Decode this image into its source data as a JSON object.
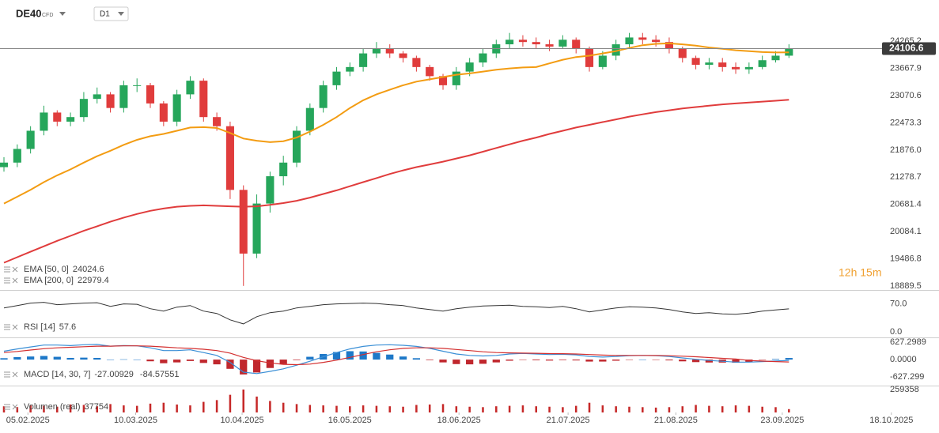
{
  "toolbar": {
    "symbol": "DE40",
    "market": "CFD",
    "timeframe": "D1"
  },
  "countdown": "12h 15m",
  "x_axis": {
    "xlim": [
      0,
      65.7
    ],
    "xticks": [
      {
        "value": 1.8,
        "label": "05.02.2025"
      },
      {
        "value": 9.9,
        "label": "10.03.2025"
      },
      {
        "value": 17.9,
        "label": "10.04.2025"
      },
      {
        "value": 26.0,
        "label": "16.05.2025"
      },
      {
        "value": 34.2,
        "label": "18.06.2025"
      },
      {
        "value": 42.4,
        "label": "21.07.2025"
      },
      {
        "value": 50.5,
        "label": "21.08.2025"
      },
      {
        "value": 58.5,
        "label": "23.09.2025"
      },
      {
        "value": 66.7,
        "label": "18.10.2025"
      }
    ]
  },
  "chart_data": [
    {
      "type": "candlestick",
      "colors": {
        "up": "#26a65b",
        "down": "#e03c3c"
      },
      "ylim": [
        18800,
        25000
      ],
      "yticks": [
        24265.2,
        23667.9,
        23070.6,
        22473.3,
        {
          "value": 21876,
          "label": "21876.0"
        },
        21278.7,
        20681.4,
        20084.1,
        19486.8,
        18889.5
      ],
      "open": [
        21500,
        21600,
        21900,
        22300,
        22700,
        22500,
        22600,
        23000,
        23100,
        22800,
        23300,
        23300,
        22900,
        22500,
        23100,
        23400,
        22600,
        22400,
        21000,
        19600,
        20700,
        21300,
        21600,
        22300,
        22800,
        23300,
        23600,
        23700,
        24000,
        24100,
        24000,
        23900,
        23700,
        23500,
        23300,
        23600,
        23800,
        24000,
        24200,
        24300,
        24250,
        24200,
        24150,
        24300,
        24100,
        23700,
        23950,
        24200,
        24350,
        24300,
        24250,
        24100,
        23900,
        23750,
        23800,
        23700,
        23650,
        23700,
        23850,
        23950
      ],
      "high": [
        21720,
        22000,
        22400,
        22850,
        22750,
        22700,
        23150,
        23250,
        23150,
        23400,
        23450,
        23350,
        22950,
        23200,
        23500,
        23450,
        22700,
        22500,
        21100,
        20900,
        21400,
        21750,
        22400,
        22900,
        23400,
        23700,
        23800,
        24100,
        24250,
        24200,
        24050,
        23950,
        23750,
        23550,
        23700,
        23900,
        24100,
        24300,
        24450,
        24400,
        24350,
        24300,
        24400,
        24350,
        24150,
        24050,
        24300,
        24450,
        24450,
        24400,
        24350,
        24150,
        23950,
        23900,
        23900,
        23800,
        23800,
        23950,
        24050,
        24200
      ],
      "low": [
        21400,
        21500,
        21800,
        22200,
        22400,
        22400,
        22500,
        22900,
        22700,
        22700,
        23150,
        22800,
        22400,
        22400,
        23000,
        22500,
        22300,
        20800,
        18890,
        19500,
        20500,
        21100,
        21500,
        22200,
        22700,
        23200,
        23500,
        23600,
        23900,
        23900,
        23800,
        23600,
        23400,
        23200,
        23200,
        23500,
        23700,
        23900,
        24100,
        24150,
        24100,
        24050,
        24100,
        24000,
        23600,
        23650,
        23850,
        24100,
        24200,
        24150,
        24000,
        23800,
        23650,
        23650,
        23600,
        23550,
        23550,
        23650,
        23800,
        23900
      ],
      "close": [
        21600,
        21900,
        22300,
        22700,
        22500,
        22600,
        23000,
        23100,
        22800,
        23300,
        23300,
        22900,
        22500,
        23100,
        23400,
        22600,
        22400,
        21000,
        19600,
        20700,
        21300,
        21600,
        22300,
        22800,
        23300,
        23600,
        23700,
        24000,
        24100,
        24000,
        23900,
        23700,
        23500,
        23300,
        23600,
        23800,
        24000,
        24200,
        24300,
        24250,
        24200,
        24150,
        24300,
        24100,
        23700,
        23950,
        24200,
        24350,
        24300,
        24250,
        24100,
        23900,
        23750,
        23800,
        23700,
        23650,
        23700,
        23850,
        23950,
        24106.6
      ],
      "overlays": [
        {
          "name": "EMA [50, 0]",
          "color": "#f39c12",
          "values": [
            20700,
            20850,
            21000,
            21170,
            21320,
            21450,
            21600,
            21740,
            21860,
            21990,
            22100,
            22180,
            22230,
            22300,
            22370,
            22380,
            22360,
            22250,
            22130,
            22080,
            22050,
            22070,
            22150,
            22280,
            22430,
            22600,
            22800,
            22970,
            23100,
            23200,
            23300,
            23380,
            23430,
            23480,
            23530,
            23560,
            23600,
            23640,
            23670,
            23690,
            23700,
            23780,
            23860,
            23920,
            23950,
            24000,
            24050,
            24120,
            24180,
            24210,
            24220,
            24200,
            24170,
            24130,
            24100,
            24070,
            24050,
            24030,
            24020,
            24024.6
          ]
        },
        {
          "name": "EMA [200, 0]",
          "color": "#e03c3c",
          "values": [
            19400,
            19520,
            19640,
            19760,
            19880,
            19990,
            20100,
            20200,
            20300,
            20390,
            20470,
            20540,
            20590,
            20630,
            20650,
            20660,
            20650,
            20640,
            20630,
            20640,
            20670,
            20710,
            20760,
            20830,
            20910,
            20990,
            21080,
            21170,
            21260,
            21350,
            21430,
            21500,
            21560,
            21620,
            21690,
            21760,
            21840,
            21920,
            22000,
            22080,
            22150,
            22230,
            22300,
            22370,
            22430,
            22490,
            22550,
            22610,
            22660,
            22710,
            22750,
            22790,
            22820,
            22850,
            22880,
            22900,
            22920,
            22940,
            22960,
            22979.4
          ]
        }
      ]
    },
    {
      "type": "line",
      "name": "RSI [14]",
      "color": "#333333",
      "ylim": [
        -12,
        101
      ],
      "yticks": [
        {
          "value": 70,
          "label": "70.0"
        },
        {
          "value": 0,
          "label": "0.0"
        }
      ],
      "values": [
        60,
        66,
        72,
        74,
        68,
        70,
        72,
        73,
        64,
        70,
        69,
        58,
        52,
        62,
        66,
        52,
        46,
        30,
        20,
        38,
        48,
        52,
        60,
        64,
        68,
        70,
        71,
        72,
        71,
        68,
        66,
        60,
        56,
        52,
        58,
        62,
        65,
        66,
        67,
        64,
        63,
        61,
        64,
        58,
        50,
        55,
        60,
        63,
        62,
        60,
        56,
        50,
        46,
        48,
        45,
        44,
        47,
        52,
        55,
        57.6
      ]
    },
    {
      "type": "macd",
      "name": "MACD [14, 30, 7]",
      "ylim": [
        -900,
        736
      ],
      "yticks": [
        627.2989,
        {
          "value": 0,
          "label": "0.0000"
        },
        -627.299
      ],
      "macd": {
        "color": "#3a8fd6",
        "values": [
          300,
          380,
          450,
          520,
          520,
          500,
          530,
          540,
          480,
          500,
          490,
          420,
          320,
          320,
          350,
          250,
          150,
          -100,
          -450,
          -500,
          -420,
          -330,
          -200,
          -60,
          100,
          250,
          380,
          470,
          520,
          530,
          510,
          470,
          400,
          300,
          200,
          150,
          130,
          150,
          200,
          220,
          200,
          180,
          190,
          170,
          110,
          90,
          110,
          140,
          150,
          140,
          110,
          60,
          10,
          -30,
          -60,
          -90,
          -90,
          -70,
          -50,
          -27.00929
        ]
      },
      "signal": {
        "color": "#d32f2f",
        "values": [
          250,
          290,
          340,
          390,
          420,
          440,
          460,
          480,
          480,
          490,
          490,
          480,
          450,
          420,
          400,
          370,
          320,
          230,
          80,
          -40,
          -120,
          -170,
          -180,
          -160,
          -100,
          -20,
          80,
          180,
          280,
          350,
          400,
          420,
          420,
          400,
          360,
          320,
          280,
          250,
          240,
          230,
          225,
          215,
          210,
          200,
          180,
          160,
          150,
          148,
          148,
          146,
          138,
          122,
          100,
          74,
          46,
          20,
          -30,
          -55,
          -72,
          -84.57551
        ]
      },
      "histogram": {
        "up_color": "#1e78c8",
        "down_color": "#c0272d",
        "values": [
          50,
          90,
          110,
          130,
          100,
          60,
          70,
          60,
          0,
          10,
          0,
          -60,
          -130,
          -100,
          -50,
          -120,
          -170,
          -330,
          -530,
          -460,
          -300,
          -160,
          -20,
          100,
          200,
          270,
          300,
          290,
          240,
          180,
          110,
          50,
          -20,
          -100,
          -160,
          -170,
          -150,
          -100,
          -40,
          -10,
          -25,
          -35,
          -20,
          -30,
          -70,
          -70,
          -40,
          -8,
          2,
          -6,
          -28,
          -62,
          -90,
          -104,
          -106,
          -110,
          -85,
          -15,
          22,
          57.56622
        ]
      }
    },
    {
      "type": "bar",
      "name": "Volumen (real)",
      "color": "#c62828",
      "ylim": [
        0,
        259358
      ],
      "yticks": [
        259358
      ],
      "values": [
        70000,
        60000,
        80000,
        75000,
        65000,
        90000,
        85000,
        70000,
        95000,
        80000,
        75000,
        100000,
        110000,
        90000,
        80000,
        120000,
        140000,
        200000,
        259358,
        180000,
        130000,
        110000,
        95000,
        85000,
        80000,
        75000,
        70000,
        80000,
        75000,
        70000,
        65000,
        85000,
        90000,
        95000,
        70000,
        65000,
        60000,
        70000,
        75000,
        80000,
        70000,
        65000,
        60000,
        75000,
        110000,
        80000,
        70000,
        65000,
        60000,
        55000,
        60000,
        70000,
        85000,
        75000,
        70000,
        80000,
        75000,
        65000,
        60000,
        37754
      ]
    }
  ]
}
